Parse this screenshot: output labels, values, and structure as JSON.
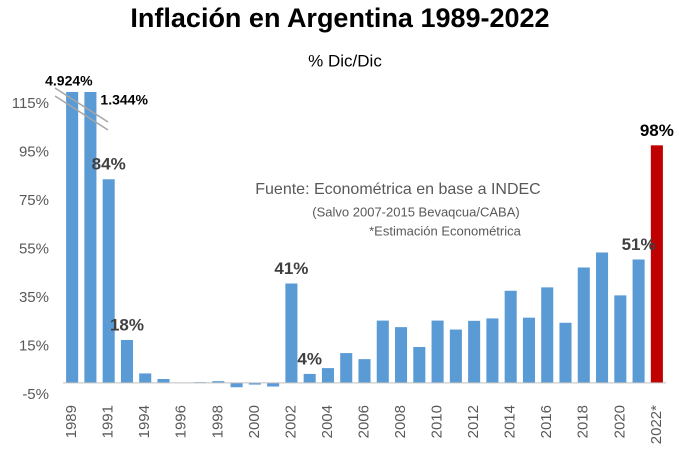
{
  "chart_data": {
    "type": "bar",
    "title": "Inflación en Argentina 1989-2022",
    "subtitle": "% Dic/Dic",
    "annotations": [
      "Fuente: Econométrica en base a INDEC",
      "(Salvo 2007-2015 Bevaqcua/CABA)",
      "*Estimación Econométrica"
    ],
    "categories": [
      "1989",
      null,
      "1991",
      null,
      "1994",
      null,
      "1996",
      null,
      "1998",
      null,
      "2000",
      null,
      "2002",
      null,
      "2004",
      null,
      "2006",
      null,
      "2008",
      null,
      "2010",
      null,
      "2012",
      null,
      "2014",
      null,
      "2016",
      null,
      "2018",
      null,
      "2020",
      null,
      "2022*"
    ],
    "values": [
      4924,
      1344,
      84,
      17.7,
      3.9,
      1.6,
      0.1,
      0.3,
      0.7,
      -1.8,
      -0.7,
      -1.5,
      41,
      3.7,
      6.1,
      12.3,
      9.8,
      25.7,
      23,
      14.8,
      25.7,
      22,
      25.6,
      26.6,
      38,
      26.9,
      39.4,
      24.8,
      47.6,
      53.8,
      36.1,
      50.9,
      98
    ],
    "value_labels": [
      "4.924%",
      "1.344%",
      "84%",
      "18%",
      null,
      null,
      null,
      null,
      null,
      null,
      null,
      null,
      "41%",
      "4%",
      null,
      null,
      null,
      null,
      null,
      null,
      null,
      null,
      null,
      null,
      null,
      null,
      null,
      null,
      null,
      null,
      null,
      "51%",
      "98%"
    ],
    "colors": [
      "#5b9bd5",
      "#5b9bd5",
      "#5b9bd5",
      "#5b9bd5",
      "#5b9bd5",
      "#5b9bd5",
      "#5b9bd5",
      "#5b9bd5",
      "#5b9bd5",
      "#5b9bd5",
      "#5b9bd5",
      "#5b9bd5",
      "#5b9bd5",
      "#5b9bd5",
      "#5b9bd5",
      "#5b9bd5",
      "#5b9bd5",
      "#5b9bd5",
      "#5b9bd5",
      "#5b9bd5",
      "#5b9bd5",
      "#5b9bd5",
      "#5b9bd5",
      "#5b9bd5",
      "#5b9bd5",
      "#5b9bd5",
      "#5b9bd5",
      "#5b9bd5",
      "#5b9bd5",
      "#5b9bd5",
      "#5b9bd5",
      "#5b9bd5",
      "#c00000"
    ],
    "ylim": [
      -5,
      120
    ],
    "yticks": [
      {
        "value": -5,
        "label": "-5%"
      },
      {
        "value": 15,
        "label": "15%"
      },
      {
        "value": 35,
        "label": "35%"
      },
      {
        "value": 55,
        "label": "55%"
      },
      {
        "value": 75,
        "label": "75%"
      },
      {
        "value": 95,
        "label": "95%"
      },
      {
        "value": 115,
        "label": "115%"
      }
    ],
    "grid": false
  }
}
